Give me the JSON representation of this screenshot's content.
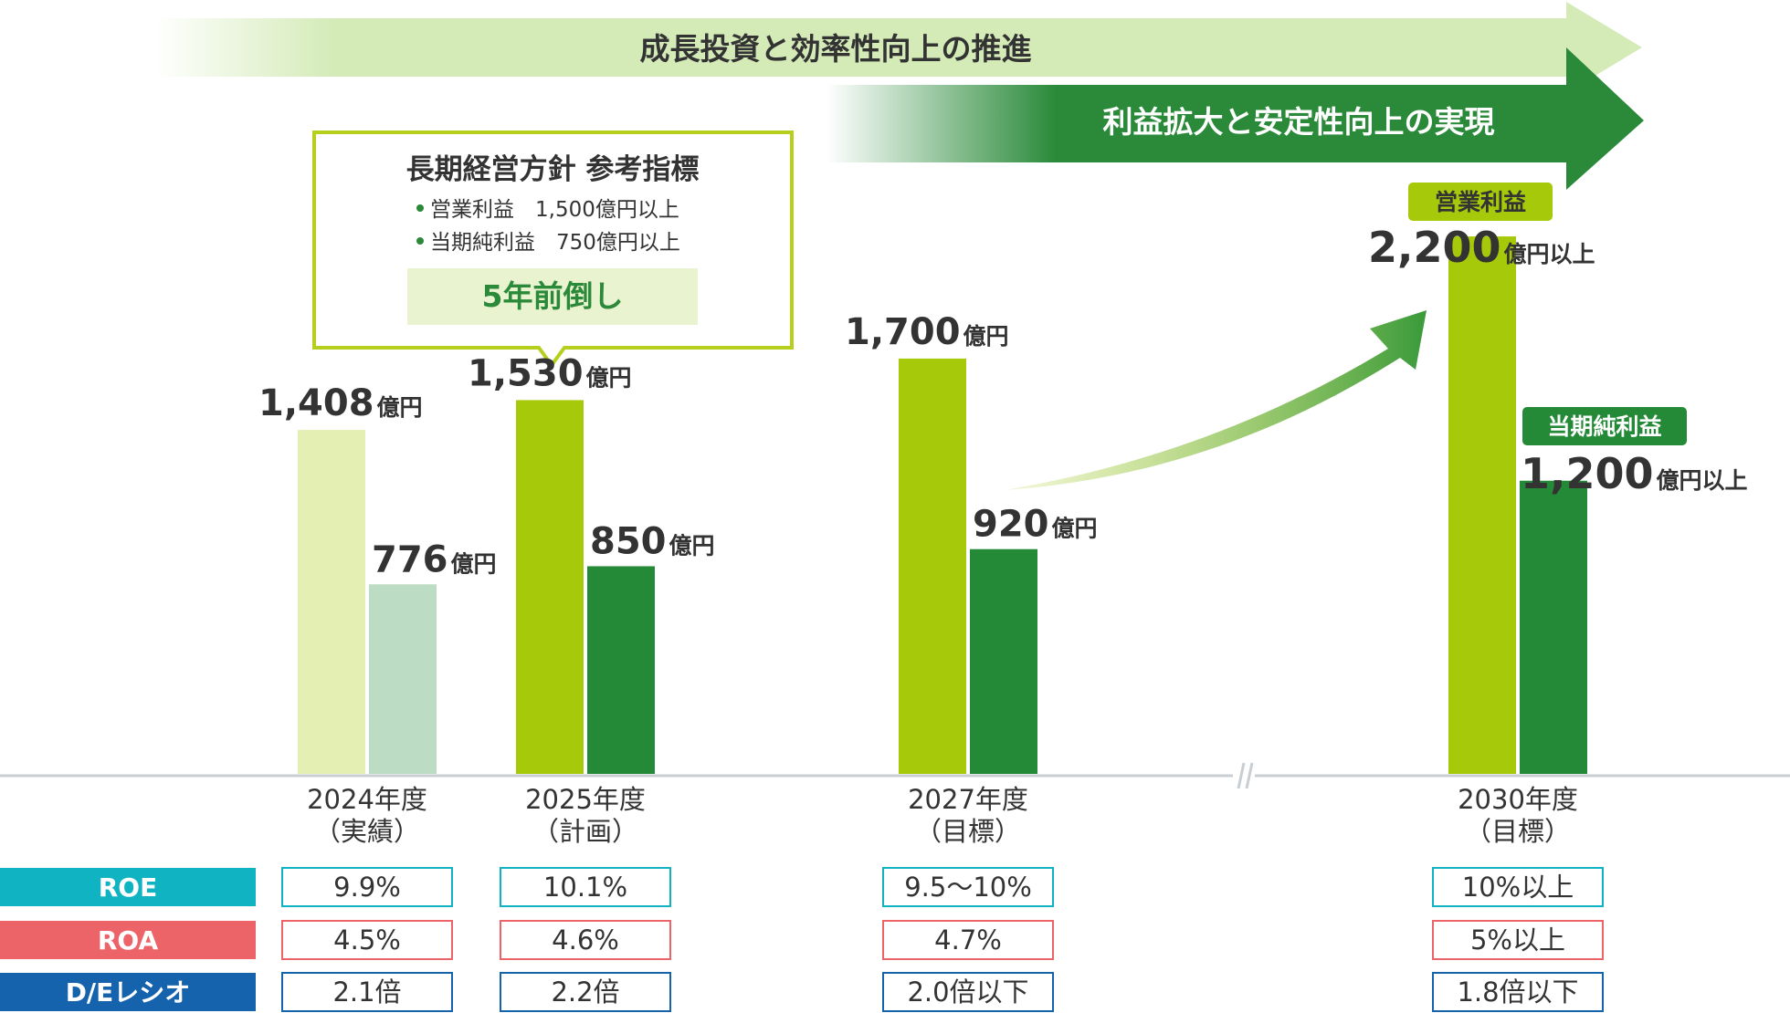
{
  "banners": {
    "top": "成長投資と効率性向上の推進",
    "second": "利益拡大と安定性向上の実現"
  },
  "callout": {
    "title": "長期経営方針 参考指標",
    "bullets": [
      "営業利益　1,500億円以上",
      "当期純利益　750億円以上"
    ],
    "highlight": "5年前倒し"
  },
  "legend_tags": {
    "operating": "営業利益",
    "net": "当期純利益"
  },
  "colors": {
    "op_actual": "#e4efb4",
    "net_actual": "#bcdcc4",
    "op": "#a6c90a",
    "net": "#258a38",
    "banner_light": "#d4ebb8",
    "banner_dark": "#2a8a3a",
    "roe": "#0fb3c1",
    "roa": "#ec6368",
    "de": "#1563ad"
  },
  "chart_data": {
    "type": "bar",
    "categories": [
      "2024年度（実績）",
      "2025年度（計画）",
      "2027年度（目標）",
      "2030年度（目標）"
    ],
    "category_lines": [
      [
        "2024年度",
        "（実績）"
      ],
      [
        "2025年度",
        "（計画）"
      ],
      [
        "2027年度",
        "（目標）"
      ],
      [
        "2030年度",
        "（目標）"
      ]
    ],
    "series": [
      {
        "name": "営業利益",
        "values": [
          1408,
          1530,
          1700,
          2200
        ],
        "labels": [
          "1,408",
          "1,530",
          "1,700",
          "2,200"
        ],
        "units": [
          "億円",
          "億円",
          "億円",
          "億円以上"
        ]
      },
      {
        "name": "当期純利益",
        "values": [
          776,
          850,
          920,
          1200
        ],
        "labels": [
          "776",
          "850",
          "920",
          "1,200"
        ],
        "units": [
          "億円",
          "億円",
          "億円",
          "億円以上"
        ]
      }
    ],
    "axis_break": "//",
    "ylim": [
      0,
      2400
    ],
    "metrics": [
      {
        "name": "ROE",
        "values": [
          "9.9%",
          "10.1%",
          "9.5～10%",
          "10%以上"
        ]
      },
      {
        "name": "ROA",
        "values": [
          "4.5%",
          "4.6%",
          "4.7%",
          "5%以上"
        ]
      },
      {
        "name": "D/Eレシオ",
        "values": [
          "2.1倍",
          "2.2倍",
          "2.0倍以下",
          "1.8倍以下"
        ]
      }
    ]
  }
}
